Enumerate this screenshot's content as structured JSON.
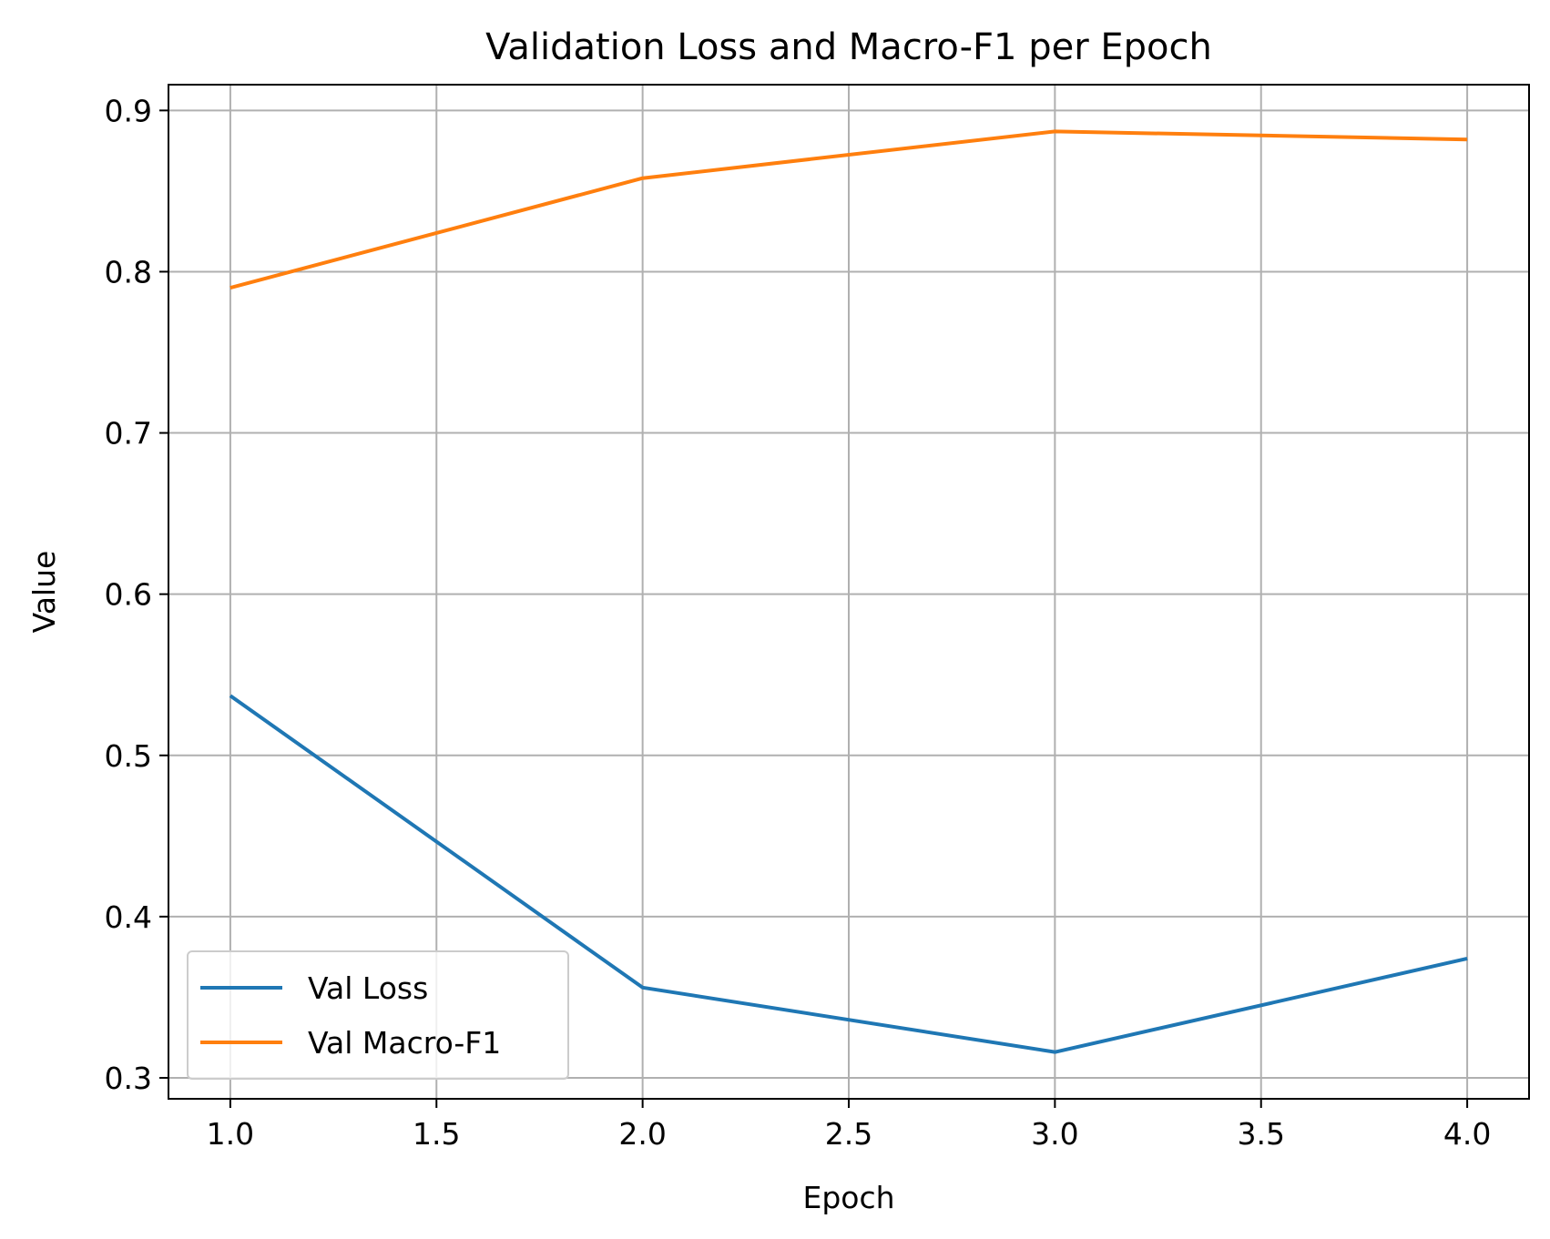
{
  "chart_data": {
    "type": "line",
    "title": "Validation Loss and Macro-F1 per Epoch",
    "xlabel": "Epoch",
    "ylabel": "Value",
    "x": [
      1,
      2,
      3,
      4
    ],
    "xlim": [
      0.85,
      4.15
    ],
    "ylim": [
      0.287,
      0.916
    ],
    "xticks": [
      1.0,
      1.5,
      2.0,
      2.5,
      3.0,
      3.5,
      4.0
    ],
    "xtick_labels": [
      "1.0",
      "1.5",
      "2.0",
      "2.5",
      "3.0",
      "3.5",
      "4.0"
    ],
    "yticks": [
      0.3,
      0.4,
      0.5,
      0.6,
      0.7,
      0.8,
      0.9
    ],
    "ytick_labels": [
      "0.3",
      "0.4",
      "0.5",
      "0.6",
      "0.7",
      "0.8",
      "0.9"
    ],
    "grid": true,
    "legend_position": "lower-left",
    "series": [
      {
        "name": "Val Loss",
        "color": "#1f77b4",
        "values": [
          0.537,
          0.356,
          0.316,
          0.374
        ]
      },
      {
        "name": "Val Macro-F1",
        "color": "#ff7f0e",
        "values": [
          0.79,
          0.858,
          0.887,
          0.882
        ]
      }
    ]
  }
}
